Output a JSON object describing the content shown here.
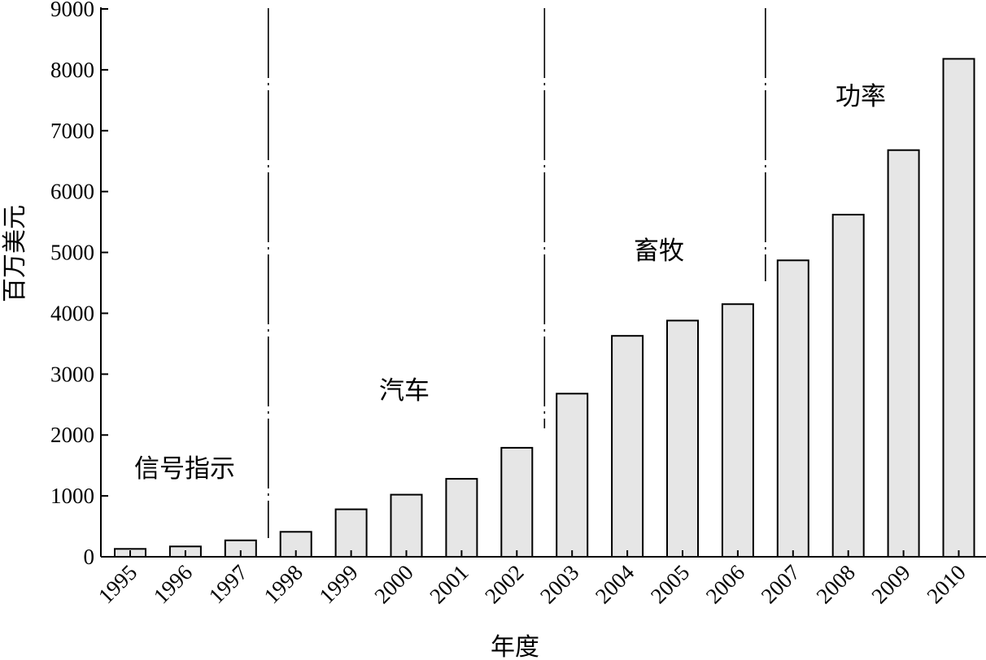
{
  "chart_data": {
    "type": "bar",
    "title": "",
    "xlabel": "年度",
    "ylabel": "百万美元",
    "ylim": [
      0,
      9000
    ],
    "yticks": [
      "0",
      "1000",
      "2000",
      "3000",
      "4000",
      "5000",
      "6000",
      "7000",
      "8000",
      "9000"
    ],
    "categories": [
      "1995",
      "1996",
      "1997",
      "1998",
      "1999",
      "2000",
      "2001",
      "2002",
      "2003",
      "2004",
      "2005",
      "2006",
      "2007",
      "2008",
      "2009",
      "2010"
    ],
    "values": [
      130,
      170,
      270,
      410,
      780,
      1020,
      1280,
      1790,
      2680,
      3630,
      3880,
      4150,
      4870,
      5620,
      6680,
      8180
    ],
    "bar_color": "#e6e6e6",
    "grid": false,
    "annotations": [
      "信号指示",
      "汽车",
      "畜牧",
      "功率"
    ]
  }
}
